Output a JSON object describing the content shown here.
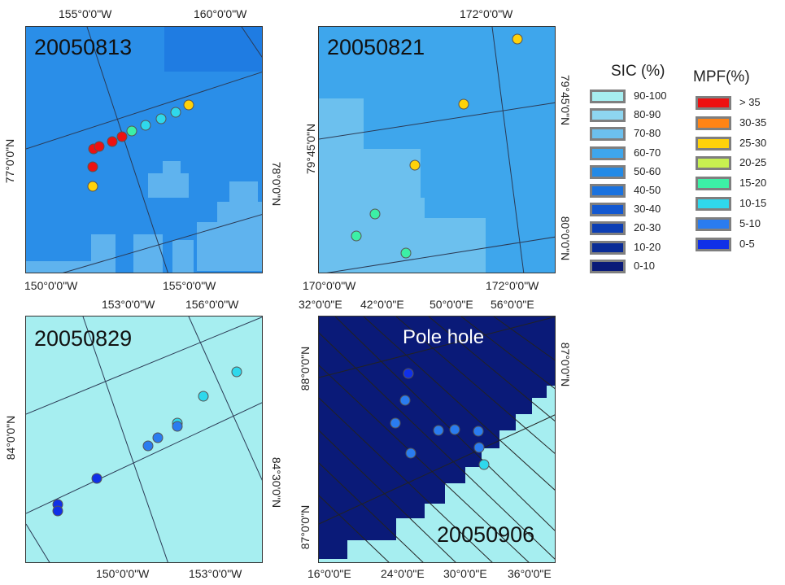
{
  "panels": [
    {
      "id": "p1",
      "date": "20050813",
      "top_labels": [
        "155°0'0\"W",
        "160°0'0\"W"
      ],
      "bottom_labels": [
        "150°0'0\"W",
        "155°0'0\"W"
      ],
      "left_labels": [
        "77°0'0\"N"
      ],
      "right_labels": [
        "78°0'0\"N"
      ]
    },
    {
      "id": "p2",
      "date": "20050821",
      "top_labels": [
        "172°0'0\"W"
      ],
      "bottom_labels": [
        "170°0'0\"W",
        "172°0'0\"W"
      ],
      "left_labels": [
        "79°45'0\"N"
      ],
      "right_labels": [
        "79°45'0\"N",
        "80°0'0\"N"
      ]
    },
    {
      "id": "p3",
      "date": "20050829",
      "top_labels": [
        "153°0'0\"W",
        "156°0'0\"W"
      ],
      "bottom_labels": [
        "150°0'0\"W",
        "153°0'0\"W"
      ],
      "left_labels": [
        "84°0'0\"N"
      ],
      "right_labels": [
        "84°30'0\"N"
      ]
    },
    {
      "id": "p4",
      "date": "20050906",
      "annotation": "Pole hole",
      "top_labels": [
        "32°0'0\"E",
        "42°0'0\"E",
        "50°0'0\"E",
        "56°0'0\"E"
      ],
      "bottom_labels": [
        "16°0'0\"E",
        "24°0'0\"E",
        "30°0'0\"E",
        "36°0'0\"E"
      ],
      "left_labels": [
        "88°0'0\"N",
        "87°0'0\"N"
      ],
      "right_labels": [
        "87°0'0\"N"
      ]
    }
  ],
  "sic_legend": {
    "title": "SIC (%)",
    "items": [
      {
        "label": "90-100",
        "color": "#a6eef0"
      },
      {
        "label": "80-90",
        "color": "#8ed6f0"
      },
      {
        "label": "70-80",
        "color": "#6cc0ee"
      },
      {
        "label": "60-70",
        "color": "#3ea6ec"
      },
      {
        "label": "50-60",
        "color": "#238ae6"
      },
      {
        "label": "40-50",
        "color": "#1a72df"
      },
      {
        "label": "30-40",
        "color": "#1358d0"
      },
      {
        "label": "20-30",
        "color": "#0d3fb4"
      },
      {
        "label": "10-20",
        "color": "#0a2c96"
      },
      {
        "label": "0-10",
        "color": "#0a1a78"
      }
    ]
  },
  "mpf_legend": {
    "title": "MPF(%)",
    "items": [
      {
        "label": "> 35",
        "color": "#ee1111"
      },
      {
        "label": "30-35",
        "color": "#ff8416"
      },
      {
        "label": "25-30",
        "color": "#ffd20a"
      },
      {
        "label": "20-25",
        "color": "#c8f050"
      },
      {
        "label": "15-20",
        "color": "#3cf0a6"
      },
      {
        "label": "10-15",
        "color": "#2fd8ec"
      },
      {
        "label": "5-10",
        "color": "#2a7cf0"
      },
      {
        "label": "0-5",
        "color": "#1030e8"
      }
    ]
  }
}
